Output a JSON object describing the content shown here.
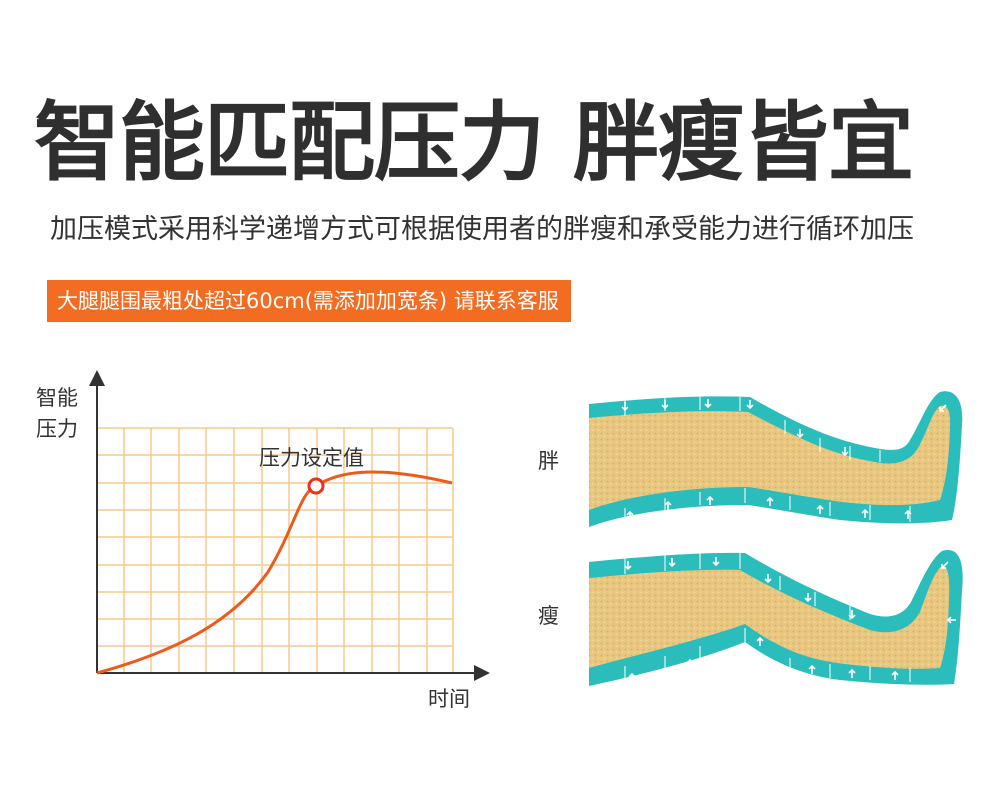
{
  "headline": "智能匹配压力 胖瘦皆宜",
  "subtitle": "加压模式采用科学递增方式可根据使用者的胖瘦和承受能力进行循环加压",
  "notice": "大腿腿围最粗处超过60cm(需添加加宽条) 请联系客服",
  "chart": {
    "y_axis_label_line1": "智能",
    "y_axis_label_line2": "压力",
    "x_axis_label": "时间",
    "marker_label": "压力设定值"
  },
  "legs": {
    "fat_label": "胖",
    "thin_label": "瘦"
  },
  "colors": {
    "accent": "#f26d21",
    "curve": "#ec5a1c",
    "grid": "#f7c98a",
    "cuff": "#2bbcbc",
    "leg_fill": "#eac77e"
  }
}
